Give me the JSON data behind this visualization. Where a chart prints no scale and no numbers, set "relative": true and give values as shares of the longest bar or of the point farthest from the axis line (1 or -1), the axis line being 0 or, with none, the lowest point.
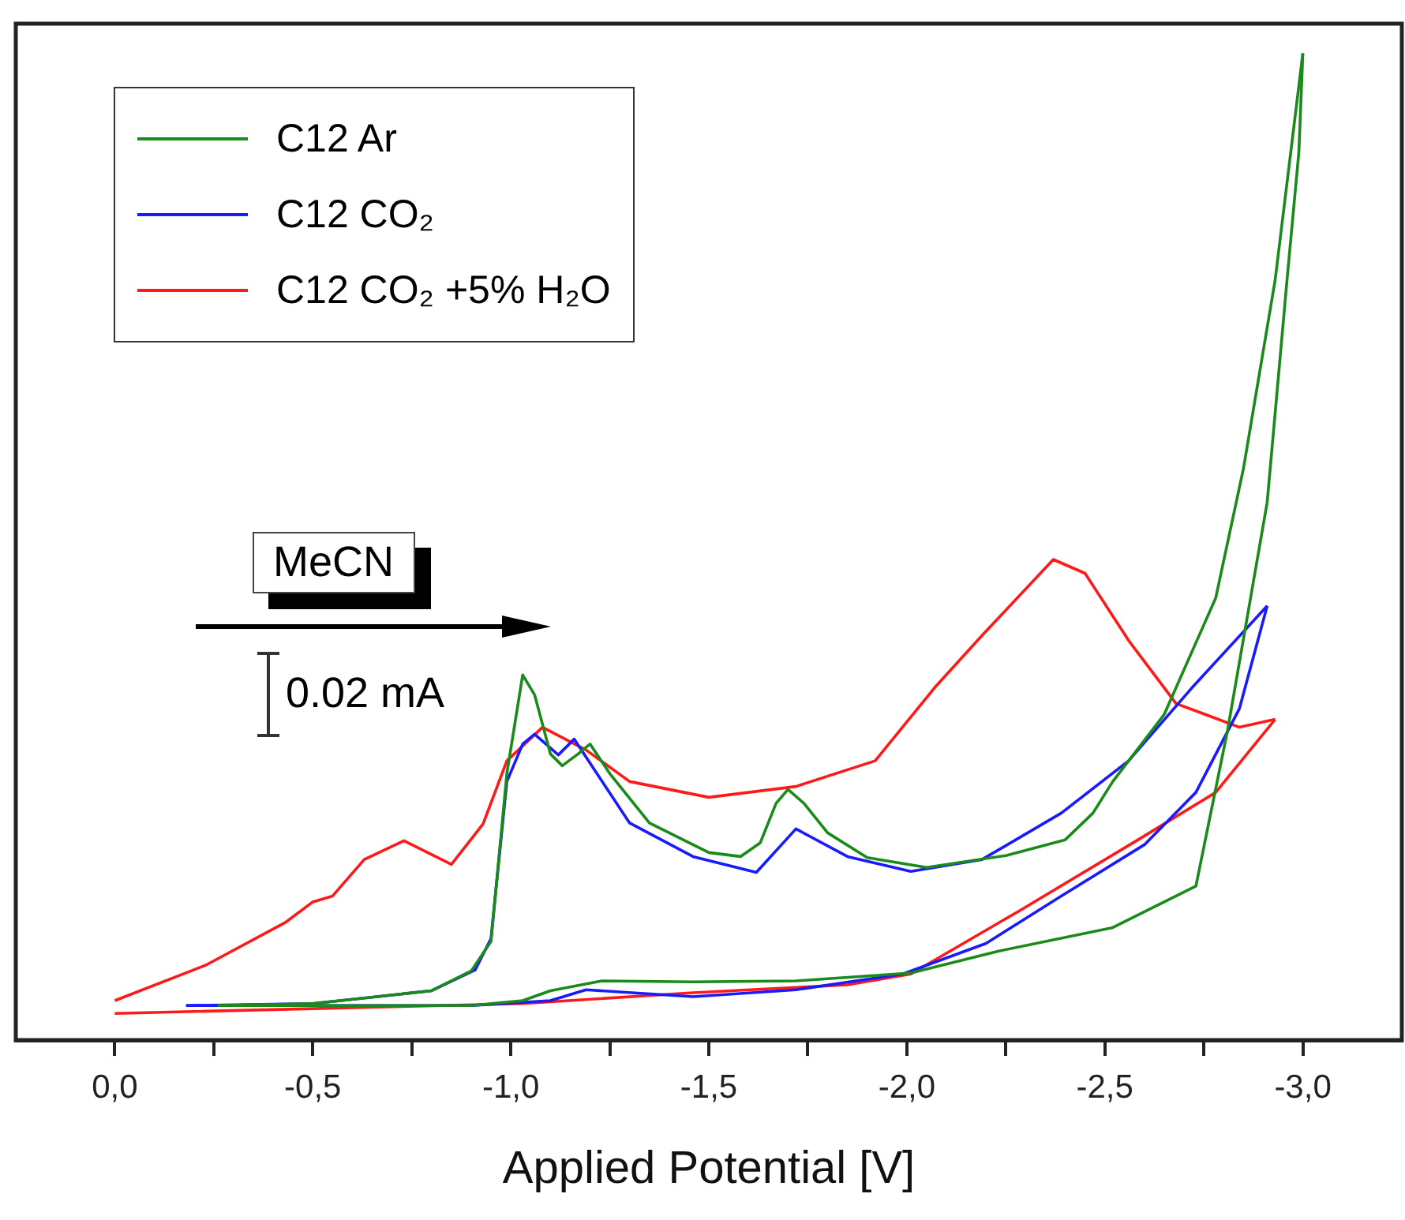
{
  "chart_data": {
    "type": "line",
    "relative": true,
    "xlabel": "Applied Potential [V]",
    "tick_labels": "x",
    "legend": "top left",
    "xlim": [
      0.25,
      -3.25
    ],
    "xticks": [
      {
        "value": 0,
        "label": "0,0"
      },
      {
        "value": -0.25,
        "label": null
      },
      {
        "value": -0.5,
        "label": "-0,5"
      },
      {
        "value": -0.75,
        "label": null
      },
      {
        "value": -1,
        "label": "-1,0"
      },
      {
        "value": -1.25,
        "label": null
      },
      {
        "value": -1.5,
        "label": "-1,5"
      },
      {
        "value": -1.75,
        "label": null
      },
      {
        "value": -2,
        "label": "-2,0"
      },
      {
        "value": -2.25,
        "label": null
      },
      {
        "value": -2.5,
        "label": "-2,5"
      },
      {
        "value": -2.75,
        "label": null
      },
      {
        "value": -3,
        "label": "-3,0"
      }
    ],
    "annotations": [
      "MeCN",
      "0.02 mA"
    ],
    "series": [
      {
        "name": "C12 Ar",
        "color": "#1a8a1a",
        "x": [
          -0.26,
          -0.5,
          -0.8,
          -0.9,
          -0.95,
          -0.99,
          -1.03,
          -1.06,
          -1.1,
          -1.13,
          -1.17,
          -1.2,
          -1.25,
          -1.35,
          -1.5,
          -1.58,
          -1.63,
          -1.67,
          -1.7,
          -1.74,
          -1.8,
          -1.9,
          -2.05,
          -2.25,
          -2.4,
          -2.47,
          -2.52,
          -2.65,
          -2.78,
          -2.85,
          -2.93,
          -3.0
        ],
        "values": [
          0.035,
          0.037,
          0.05,
          0.07,
          0.1,
          0.27,
          0.37,
          0.35,
          0.29,
          0.278,
          0.29,
          0.3,
          0.27,
          0.22,
          0.19,
          0.186,
          0.2,
          0.24,
          0.254,
          0.24,
          0.21,
          0.185,
          0.175,
          0.187,
          0.203,
          0.23,
          0.262,
          0.33,
          0.448,
          0.579,
          0.77,
          1
        ]
      },
      {
        "color": "#1a8a1a",
        "x": [
          -3.0,
          -2.99,
          -2.96,
          -2.91,
          -2.81,
          -2.73,
          -2.52,
          -2.23,
          -2.01,
          -1.72,
          -1.46,
          -1.23,
          -1.1,
          -1.03,
          -0.9,
          -0.5,
          -0.26
        ],
        "values": [
          1,
          0.9,
          0.77,
          0.545,
          0.314,
          0.156,
          0.114,
          0.09,
          0.068,
          0.06,
          0.059,
          0.06,
          0.05,
          0.04,
          0.035,
          0.035,
          0.035
        ]
      },
      {
        "name": "C12 CO₂",
        "color": "#1a1aff",
        "x": [
          -0.18,
          -0.5,
          -0.8,
          -0.91,
          -0.95,
          -0.99,
          -1.03,
          -1.06,
          -1.12,
          -1.16,
          -1.3,
          -1.46,
          -1.62,
          -1.72,
          -1.85,
          -2.01,
          -2.19,
          -2.39,
          -2.56,
          -2.72,
          -2.91
        ],
        "values": [
          0.035,
          0.037,
          0.05,
          0.071,
          0.103,
          0.262,
          0.3,
          0.31,
          0.289,
          0.305,
          0.22,
          0.186,
          0.17,
          0.214,
          0.186,
          0.171,
          0.183,
          0.23,
          0.283,
          0.357,
          0.44
        ]
      },
      {
        "color": "#1a1aff",
        "x": [
          -2.91,
          -2.84,
          -2.73,
          -2.6,
          -2.39,
          -2.2,
          -1.99,
          -1.72,
          -1.46,
          -1.19,
          -1.1,
          -0.9,
          -0.5,
          -0.18
        ],
        "values": [
          0.44,
          0.336,
          0.251,
          0.198,
          0.146,
          0.098,
          0.067,
          0.051,
          0.044,
          0.051,
          0.04,
          0.035,
          0.035,
          0.035
        ]
      },
      {
        "name": "C12 CO₂ +5% H₂O",
        "color": "#ff1a1a",
        "x": [
          0,
          -0.23,
          -0.43,
          -0.5,
          -0.55,
          -0.63,
          -0.73,
          -0.85,
          -0.93,
          -0.99,
          -1.08,
          -1.19,
          -1.3,
          -1.5,
          -1.72,
          -1.92,
          -2.07,
          -2.19,
          -2.37,
          -2.45,
          -2.56,
          -2.68,
          -2.84,
          -2.93
        ],
        "values": [
          0.04,
          0.076,
          0.119,
          0.14,
          0.146,
          0.183,
          0.202,
          0.178,
          0.219,
          0.283,
          0.317,
          0.294,
          0.262,
          0.246,
          0.257,
          0.283,
          0.357,
          0.41,
          0.487,
          0.473,
          0.405,
          0.341,
          0.317,
          0.325
        ]
      },
      {
        "color": "#ff1a1a",
        "x": [
          -2.93,
          -2.78,
          -2.58,
          -2.28,
          -2.01,
          -1.85,
          -1.46,
          -1.03,
          0
        ],
        "values": [
          0.325,
          0.251,
          0.202,
          0.13,
          0.067,
          0.056,
          0.048,
          0.037,
          0.027
        ]
      }
    ]
  }
}
